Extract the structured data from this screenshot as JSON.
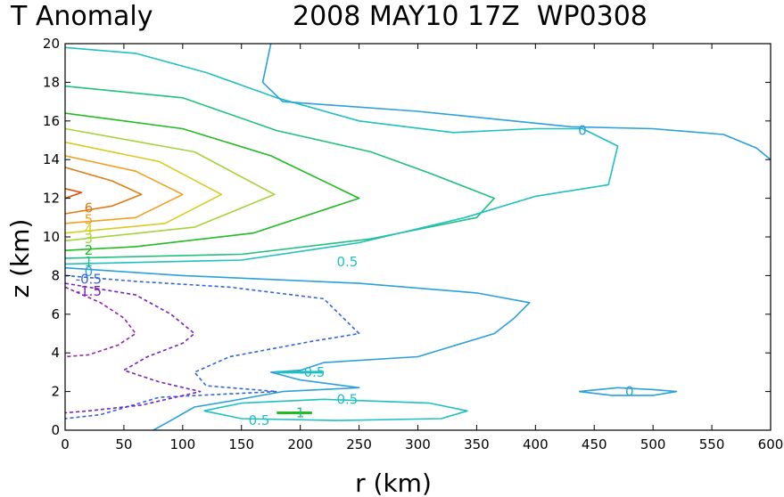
{
  "title_left": "T Anomaly",
  "title_right": "2008 MAY10 17Z  WP0308",
  "chart_data": {
    "type": "contour",
    "xlabel": "r (km)",
    "ylabel": "z (km)",
    "xlim": [
      0,
      600
    ],
    "ylim": [
      0,
      20
    ],
    "xticks": [
      0,
      50,
      100,
      150,
      200,
      250,
      300,
      350,
      400,
      450,
      500,
      550,
      600
    ],
    "yticks": [
      0,
      2,
      4,
      6,
      8,
      10,
      12,
      14,
      16,
      18,
      20
    ],
    "grid": false,
    "contours": [
      {
        "level": "6",
        "color": "#e0500a",
        "dashed": false,
        "points": [
          [
            0,
            12.5
          ],
          [
            14,
            12.3
          ],
          [
            0,
            12.0
          ]
        ]
      },
      {
        "level": "6",
        "color": "#e27a10",
        "dashed": false,
        "points": [
          [
            0,
            13.6
          ],
          [
            40,
            12.9
          ],
          [
            65,
            12.2
          ],
          [
            40,
            11.6
          ],
          [
            0,
            11.2
          ]
        ]
      },
      {
        "level": "5",
        "color": "#f0a020",
        "dashed": false,
        "points": [
          [
            0,
            14.2
          ],
          [
            60,
            13.4
          ],
          [
            100,
            12.2
          ],
          [
            60,
            11.0
          ],
          [
            0,
            10.7
          ]
        ]
      },
      {
        "level": "4",
        "color": "#d8cc20",
        "dashed": false,
        "points": [
          [
            0,
            14.9
          ],
          [
            80,
            13.9
          ],
          [
            133,
            12.2
          ],
          [
            85,
            10.7
          ],
          [
            0,
            10.2
          ]
        ]
      },
      {
        "level": "3",
        "color": "#a6d23a",
        "dashed": false,
        "points": [
          [
            0,
            15.6
          ],
          [
            110,
            14.4
          ],
          [
            178,
            12.2
          ],
          [
            110,
            10.5
          ],
          [
            0,
            9.8
          ]
        ]
      },
      {
        "level": "2",
        "color": "#22bb22",
        "dashed": false,
        "points": [
          [
            0,
            16.4
          ],
          [
            100,
            15.6
          ],
          [
            175,
            14.2
          ],
          [
            250,
            12.0
          ],
          [
            160,
            10.2
          ],
          [
            60,
            9.5
          ],
          [
            0,
            9.3
          ]
        ]
      },
      {
        "level": "1",
        "color": "#20c080",
        "dashed": false,
        "points": [
          [
            0,
            17.8
          ],
          [
            100,
            17.2
          ],
          [
            180,
            15.5
          ],
          [
            260,
            14.4
          ],
          [
            310,
            13.3
          ],
          [
            365,
            12.0
          ],
          [
            350,
            11.0
          ],
          [
            260,
            9.9
          ],
          [
            150,
            9.1
          ],
          [
            0,
            8.9
          ]
        ]
      },
      {
        "level": "0.5",
        "color": "#20c0c0",
        "dashed": false,
        "points": [
          [
            0,
            19.8
          ],
          [
            60,
            19.5
          ],
          [
            120,
            18.5
          ],
          [
            180,
            17.2
          ],
          [
            250,
            16.0
          ],
          [
            330,
            15.4
          ],
          [
            400,
            15.6
          ],
          [
            440,
            15.6
          ],
          [
            470,
            14.7
          ],
          [
            462,
            12.7
          ],
          [
            400,
            12.1
          ],
          [
            340,
            11.0
          ],
          [
            250,
            9.7
          ],
          [
            150,
            8.8
          ],
          [
            0,
            8.6
          ]
        ]
      },
      {
        "level": "0",
        "color": "#2aa0dc",
        "dashed": false,
        "points": [
          [
            175,
            20
          ],
          [
            168,
            18.0
          ],
          [
            185,
            17.0
          ],
          [
            300,
            16.5
          ],
          [
            430,
            15.7
          ],
          [
            500,
            15.6
          ],
          [
            560,
            15.3
          ],
          [
            588,
            14.6
          ],
          [
            600,
            14.0
          ]
        ]
      },
      {
        "level": "0",
        "color": "#2aa0dc",
        "dashed": false,
        "points": [
          [
            0,
            8.4
          ],
          [
            100,
            8.0
          ],
          [
            250,
            7.6
          ],
          [
            350,
            7.1
          ],
          [
            395,
            6.6
          ],
          [
            382,
            5.8
          ],
          [
            365,
            5.0
          ],
          [
            300,
            3.8
          ],
          [
            220,
            3.5
          ],
          [
            200,
            3.1
          ],
          [
            175,
            3.0
          ],
          [
            200,
            2.6
          ],
          [
            250,
            2.2
          ],
          [
            185,
            2.0
          ],
          [
            140,
            1.5
          ],
          [
            110,
            1.2
          ],
          [
            90,
            0.5
          ],
          [
            75,
            0.0
          ]
        ]
      },
      {
        "level": "0.5",
        "color": "#20c0c0",
        "dashed": false,
        "points": [
          [
            118,
            1.0
          ],
          [
            150,
            1.4
          ],
          [
            220,
            1.6
          ],
          [
            310,
            1.4
          ],
          [
            342,
            1.0
          ],
          [
            320,
            0.6
          ],
          [
            230,
            0.5
          ],
          [
            150,
            0.6
          ],
          [
            118,
            1.0
          ]
        ]
      },
      {
        "level": "0",
        "color": "#2aa0dc",
        "dashed": false,
        "points": [
          [
            437,
            2.0
          ],
          [
            470,
            2.2
          ],
          [
            500,
            2.1
          ],
          [
            520,
            2.0
          ],
          [
            500,
            1.8
          ],
          [
            465,
            1.8
          ],
          [
            437,
            2.0
          ]
        ]
      },
      {
        "level": "-0.5",
        "color": "#3366dd",
        "dashed": true,
        "points": [
          [
            0,
            8.0
          ],
          [
            60,
            7.7
          ],
          [
            140,
            7.4
          ],
          [
            220,
            6.8
          ],
          [
            250,
            5.0
          ],
          [
            210,
            4.6
          ],
          [
            140,
            3.8
          ],
          [
            110,
            3.0
          ],
          [
            120,
            2.3
          ],
          [
            180,
            2.0
          ],
          [
            80,
            1.7
          ],
          [
            30,
            0.8
          ],
          [
            0,
            0.6
          ]
        ]
      },
      {
        "level": "-1.5",
        "color": "#7722bb",
        "dashed": true,
        "points": [
          [
            0,
            7.6
          ],
          [
            60,
            7.0
          ],
          [
            90,
            6.0
          ],
          [
            110,
            5.0
          ],
          [
            100,
            4.5
          ],
          [
            70,
            3.8
          ],
          [
            50,
            3.1
          ],
          [
            80,
            2.5
          ],
          [
            115,
            2.0
          ],
          [
            65,
            1.3
          ],
          [
            20,
            1.0
          ],
          [
            0,
            0.9
          ]
        ]
      },
      {
        "level": "-1.5",
        "color": "#9922aa",
        "dashed": true,
        "points": [
          [
            0,
            7.4
          ],
          [
            30,
            6.6
          ],
          [
            50,
            5.8
          ],
          [
            60,
            5.0
          ],
          [
            45,
            4.4
          ],
          [
            20,
            3.9
          ],
          [
            0,
            3.8
          ]
        ]
      }
    ],
    "labels": [
      {
        "text": "6",
        "x": 20,
        "y": 11.5,
        "color": "#e27a10"
      },
      {
        "text": "5",
        "x": 20,
        "y": 10.9,
        "color": "#f0a020"
      },
      {
        "text": "4",
        "x": 20,
        "y": 10.4,
        "color": "#d8cc20"
      },
      {
        "text": "3",
        "x": 20,
        "y": 9.9,
        "color": "#a6d23a"
      },
      {
        "text": "2",
        "x": 20,
        "y": 9.3,
        "color": "#22bb22"
      },
      {
        "text": "1",
        "x": 20,
        "y": 8.7,
        "color": "#20c080"
      },
      {
        "text": "0",
        "x": 20,
        "y": 8.2,
        "color": "#2aa0dc"
      },
      {
        "text": "-0.5",
        "x": 20,
        "y": 7.8,
        "color": "#3366dd"
      },
      {
        "text": "-1.5",
        "x": 20,
        "y": 7.2,
        "color": "#7722bb"
      },
      {
        "text": "0",
        "x": 440,
        "y": 15.5,
        "color": "#2aa0dc"
      },
      {
        "text": "0.5",
        "x": 240,
        "y": 8.7,
        "color": "#20c0c0"
      },
      {
        "text": "-0.5",
        "x": 210,
        "y": 3.0,
        "color": "#20c0c0"
      },
      {
        "text": "0.5",
        "x": 240,
        "y": 1.6,
        "color": "#20c0c0"
      },
      {
        "text": "1",
        "x": 200,
        "y": 0.9,
        "color": "#20c080"
      },
      {
        "text": "0.5",
        "x": 165,
        "y": 0.5,
        "color": "#20c0c0"
      },
      {
        "text": "0",
        "x": 480,
        "y": 2.0,
        "color": "#2aa0dc"
      }
    ],
    "segments": [
      {
        "color": "#20c0c0",
        "points": [
          [
            180,
            3.0
          ],
          [
            220,
            3.0
          ]
        ]
      },
      {
        "color": "#22bb22",
        "points": [
          [
            180,
            0.9
          ],
          [
            210,
            0.9
          ]
        ]
      }
    ]
  }
}
